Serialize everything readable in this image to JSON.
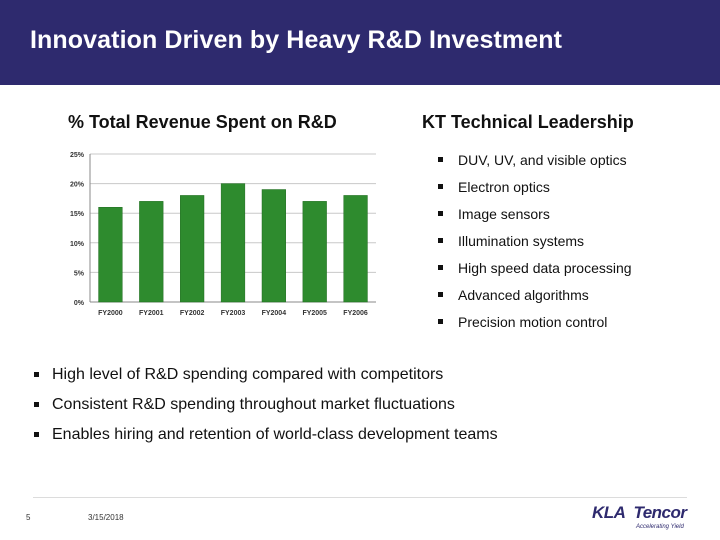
{
  "header": {
    "title": "Innovation Driven by Heavy R&D Investment"
  },
  "left_column": {
    "heading": "% Total Revenue Spent on R&D"
  },
  "right_column": {
    "heading": "KT Technical Leadership",
    "items": [
      "DUV, UV, and visible optics",
      "Electron optics",
      "Image sensors",
      "Illumination systems",
      "High speed data processing",
      "Advanced algorithms",
      "Precision motion control"
    ]
  },
  "main_bullets": [
    "High level of R&D spending compared with competitors",
    "Consistent R&D spending throughout market fluctuations",
    "Enables hiring and retention of world-class development teams"
  ],
  "footer": {
    "page_number": "5",
    "date": "3/15/2018"
  },
  "logo": {
    "left_text": "KLA",
    "right_text": "Tencor",
    "tagline": "Accelerating Yield"
  },
  "colors": {
    "header_bg": "#2e2a6e",
    "bar_fill": "#2e8b2e",
    "text": "#111111"
  },
  "chart_data": {
    "type": "bar",
    "title": "% Total Revenue Spent on R&D",
    "categories": [
      "FY2000",
      "FY2001",
      "FY2002",
      "FY2003",
      "FY2004",
      "FY2005",
      "FY2006"
    ],
    "values": [
      16,
      17,
      18,
      20,
      19,
      17,
      18
    ],
    "yticks": [
      "0%",
      "5%",
      "10%",
      "15%",
      "20%",
      "25%"
    ],
    "ylim": [
      0,
      25
    ],
    "xlabel": "",
    "ylabel": "",
    "grid": true
  }
}
